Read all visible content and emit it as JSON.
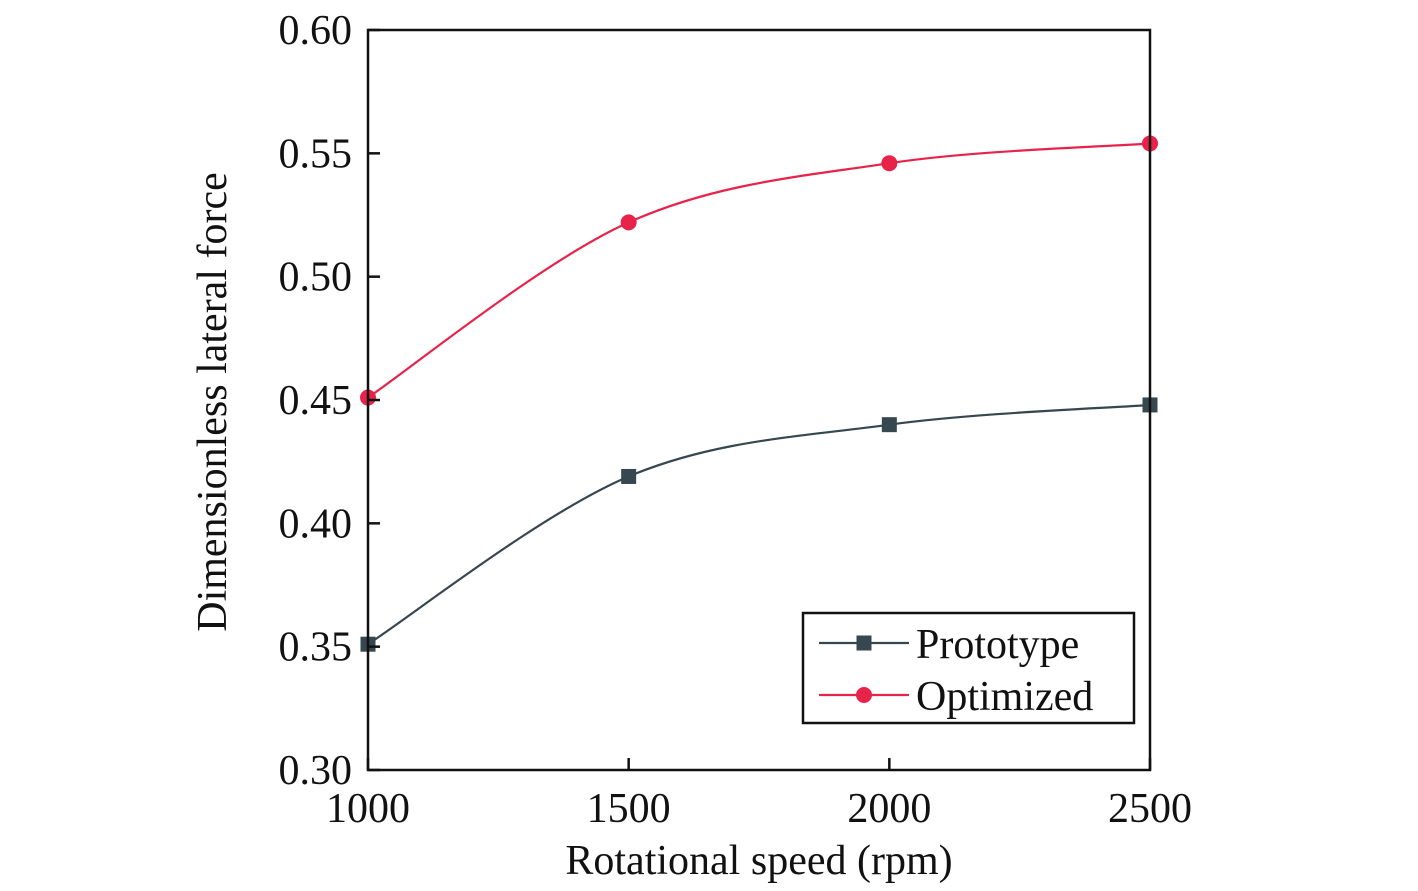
{
  "chart_data": {
    "type": "line",
    "title": "",
    "xlabel": "Rotational speed (rpm)",
    "ylabel": "Dimensionless lateral force",
    "xlim": [
      1000,
      2500
    ],
    "ylim": [
      0.3,
      0.6
    ],
    "x_ticks": [
      "1000",
      "1500",
      "2000",
      "2500"
    ],
    "y_ticks": [
      "0.30",
      "0.35",
      "0.40",
      "0.45",
      "0.50",
      "0.55",
      "0.60"
    ],
    "grid": false,
    "legend_position": "bottom-right",
    "x": [
      1000,
      1500,
      2000,
      2500
    ],
    "series": [
      {
        "name": "Prototype",
        "values": [
          0.351,
          0.419,
          0.44,
          0.448
        ],
        "color": "#37474f",
        "marker": "square"
      },
      {
        "name": "Optimized",
        "values": [
          0.451,
          0.522,
          0.546,
          0.554
        ],
        "color": "#e8234a",
        "marker": "circle"
      }
    ]
  }
}
